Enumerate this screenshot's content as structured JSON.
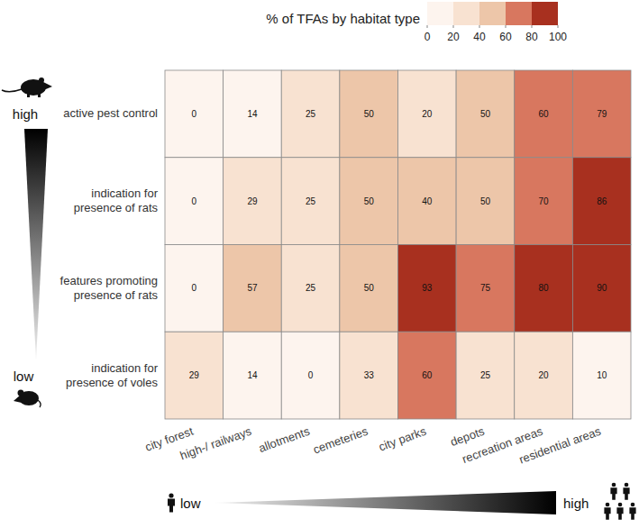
{
  "chart_data": {
    "type": "heatmap",
    "x": [
      "city forest",
      "high-/ railways",
      "allotments",
      "cemeteries",
      "city parks",
      "depots",
      "recreation areas",
      "residential areas"
    ],
    "y": [
      "active pest control",
      "indication for presence of rats",
      "features promoting presence of rats",
      "indication for presence of voles"
    ],
    "cells": [
      [
        0,
        14,
        25,
        50,
        20,
        50,
        60,
        79
      ],
      [
        0,
        29,
        25,
        50,
        40,
        50,
        70,
        86
      ],
      [
        0,
        57,
        25,
        50,
        93,
        75,
        80,
        90
      ],
      [
        29,
        14,
        0,
        33,
        60,
        25,
        20,
        10
      ]
    ],
    "data_labels": true,
    "colorbar": {
      "title": "% of TFAs by habitat type",
      "range": [
        0,
        100
      ],
      "ticks": [
        0,
        20,
        40,
        60,
        80,
        100
      ],
      "colors": [
        "#fdf4ee",
        "#f8e2d1",
        "#edc6a9",
        "#d8775f",
        "#a8301f"
      ]
    },
    "annotations": {
      "y_high": "high",
      "y_low": "low",
      "x_low": "low",
      "x_high": "high"
    }
  }
}
